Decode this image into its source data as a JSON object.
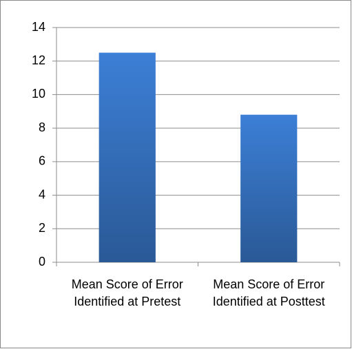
{
  "chart_data": {
    "type": "bar",
    "categories": [
      "Mean Score of Error Identified at Pretest",
      "Mean Score of Error Identified at Posttest"
    ],
    "values": [
      12.5,
      8.8
    ],
    "color": "#3c7fd6",
    "ylim": [
      0,
      14
    ],
    "yticks": [
      0,
      2,
      4,
      6,
      8,
      10,
      12,
      14
    ],
    "grid": true
  }
}
